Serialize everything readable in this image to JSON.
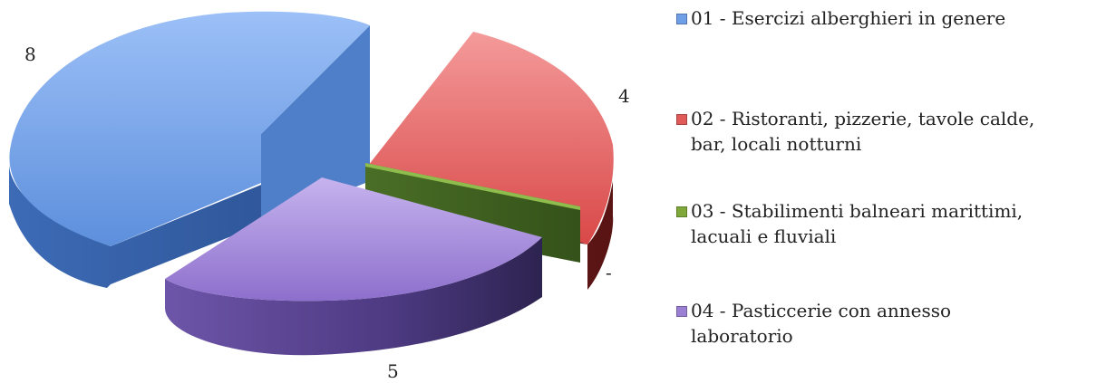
{
  "chart_data": {
    "type": "pie",
    "style": "3d-exploded",
    "title": "",
    "categories": [
      "01 - Esercizi alberghieri in genere",
      "02 - Ristoranti, pizzerie, tavole calde, bar, locali notturni",
      "03 - Stabilimenti balneari marittimi, lacuali e fluviali",
      "04 - Pasticcerie con annesso laboratorio"
    ],
    "values": [
      8,
      4,
      0,
      5
    ],
    "data_labels": [
      "8",
      "4",
      "-",
      "5"
    ],
    "colors": [
      "#6f9fe6",
      "#e05a5a",
      "#7ea83a",
      "#9b7fd4"
    ],
    "legend_position": "right"
  },
  "legend": {
    "items": [
      {
        "line1": "01 - Esercizi alberghieri in genere",
        "line2": ""
      },
      {
        "line1": "02 - Ristoranti, pizzerie, tavole calde,",
        "line2": "bar, locali notturni"
      },
      {
        "line1": "03 - Stabilimenti balneari marittimi,",
        "line2": "lacuali e fluviali"
      },
      {
        "line1": "04 - Pasticcerie con annesso",
        "line2": "laboratorio"
      }
    ]
  }
}
